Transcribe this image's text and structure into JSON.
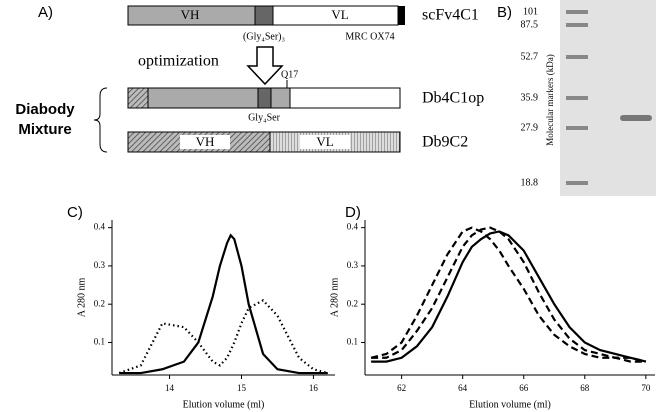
{
  "panel_a": {
    "label": "A)",
    "scfv": {
      "name": "scFv4C1",
      "vh": "VH",
      "vl": "VL",
      "linker": "(Gly₄Ser)₃",
      "source": "MRC OX74"
    },
    "step": "optimization",
    "mutation": "Q17",
    "db4": {
      "name": "Db4C1op",
      "linker": "Gly₄Ser"
    },
    "db9": {
      "name": "Db9C2",
      "vh": "VH",
      "vl": "VL"
    },
    "group": [
      "Diabody",
      "Mixture"
    ]
  },
  "panel_b": {
    "label": "B)",
    "axis_label": "Molecular markers (kDa)",
    "markers": [
      "101",
      "87.5",
      "52.7",
      "35.9",
      "27.9",
      "18.8"
    ]
  },
  "chart_data": [
    {
      "type": "line",
      "title": "C)",
      "xlabel": "Elution volume (ml)",
      "ylabel": "A 280 nm",
      "x": [
        13.3,
        13.6,
        13.9,
        14.2,
        14.4,
        14.6,
        14.7,
        14.8,
        14.85,
        14.9,
        15.0,
        15.1,
        15.3,
        15.5,
        15.8,
        16.0,
        16.2
      ],
      "xlim": [
        13.2,
        16.3
      ],
      "xticks": [
        14,
        15,
        16
      ],
      "ylim": [
        0.015,
        0.42
      ],
      "yticks": [
        0.1,
        0.2,
        0.3,
        0.4
      ],
      "series": [
        {
          "color": "#000000",
          "dash": "solid",
          "values": [
            0.02,
            0.02,
            0.03,
            0.05,
            0.1,
            0.22,
            0.3,
            0.36,
            0.38,
            0.37,
            0.3,
            0.2,
            0.07,
            0.03,
            0.02,
            0.02,
            0.02
          ]
        },
        {
          "color": "#000000",
          "dash": "dotted",
          "values": [
            0.02,
            0.04,
            0.15,
            0.14,
            0.1,
            0.05,
            0.04,
            0.06,
            0.08,
            0.1,
            0.15,
            0.19,
            0.21,
            0.17,
            0.06,
            0.03,
            0.02
          ]
        }
      ]
    },
    {
      "type": "line",
      "title": "D)",
      "xlabel": "Elution volume (ml)",
      "ylabel": "A 280 nm",
      "x": [
        61,
        61.5,
        62,
        62.5,
        63,
        63.5,
        64,
        64.3,
        64.6,
        64.9,
        65.2,
        65.5,
        66,
        66.5,
        67,
        67.5,
        68,
        68.5,
        69,
        69.5,
        70
      ],
      "xlim": [
        60.8,
        70.3
      ],
      "xticks": [
        62,
        64,
        66,
        68,
        70
      ],
      "ylim": [
        0.015,
        0.42
      ],
      "yticks": [
        0.1,
        0.2,
        0.3,
        0.4
      ],
      "series": [
        {
          "color": "#000000",
          "dash": "solid",
          "values": [
            0.05,
            0.05,
            0.06,
            0.09,
            0.14,
            0.22,
            0.31,
            0.35,
            0.37,
            0.385,
            0.39,
            0.38,
            0.34,
            0.27,
            0.2,
            0.14,
            0.1,
            0.08,
            0.07,
            0.06,
            0.05
          ]
        },
        {
          "color": "#000000",
          "dash": "dashed",
          "values": [
            0.06,
            0.06,
            0.08,
            0.13,
            0.19,
            0.27,
            0.35,
            0.38,
            0.395,
            0.4,
            0.39,
            0.37,
            0.31,
            0.23,
            0.16,
            0.11,
            0.08,
            0.07,
            0.06,
            0.06,
            0.05
          ]
        },
        {
          "color": "#000000",
          "dash": "dashed",
          "values": [
            0.06,
            0.07,
            0.1,
            0.17,
            0.25,
            0.33,
            0.39,
            0.4,
            0.39,
            0.37,
            0.34,
            0.3,
            0.24,
            0.17,
            0.12,
            0.09,
            0.07,
            0.06,
            0.06,
            0.05,
            0.05
          ]
        }
      ]
    }
  ]
}
